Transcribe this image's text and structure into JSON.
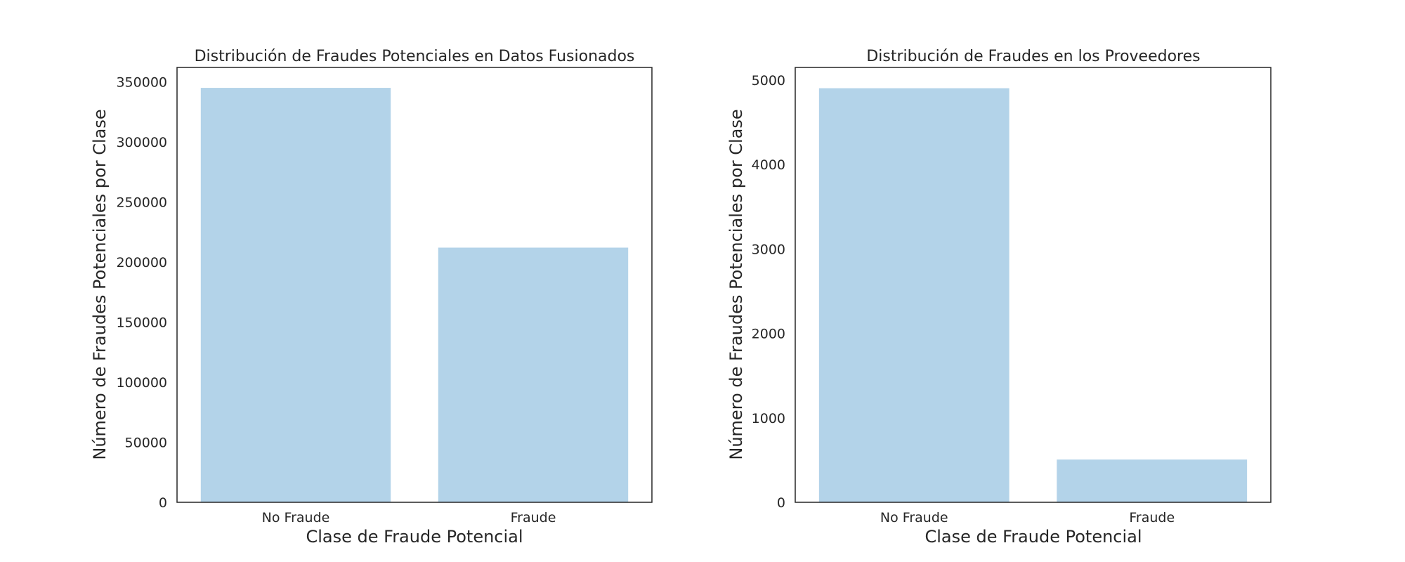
{
  "chart_data": [
    {
      "type": "bar",
      "title": "Distribución de Fraudes Potenciales en Datos Fusionados",
      "xlabel": "Clase de Fraude Potencial",
      "ylabel": "Número de Fraudes Potenciales por Clase",
      "categories": [
        "No Fraude",
        "Fraude"
      ],
      "values": [
        345000,
        212000
      ],
      "ylim": [
        0,
        362000
      ],
      "yticks": [
        0,
        50000,
        100000,
        150000,
        200000,
        250000,
        300000,
        350000
      ],
      "bar_color": "#b3d3e9",
      "grid": false,
      "legend": "none"
    },
    {
      "type": "bar",
      "title": "Distribución de Fraudes en los Proveedores",
      "xlabel": "Clase de Fraude Potencial",
      "ylabel": "Número de Fraudes Potenciales por Clase",
      "categories": [
        "No Fraude",
        "Fraude"
      ],
      "values": [
        4904,
        506
      ],
      "ylim": [
        0,
        5150
      ],
      "yticks": [
        0,
        1000,
        2000,
        3000,
        4000,
        5000
      ],
      "bar_color": "#b3d3e9",
      "grid": false,
      "legend": "none"
    }
  ]
}
